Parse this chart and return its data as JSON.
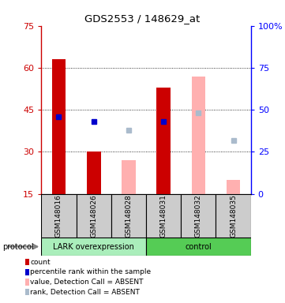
{
  "title": "GDS2553 / 148629_at",
  "samples": [
    "GSM148016",
    "GSM148026",
    "GSM148028",
    "GSM148031",
    "GSM148032",
    "GSM148035"
  ],
  "bar_data": [
    {
      "x": 0,
      "count": 63,
      "rank": 46,
      "absent_val": null,
      "absent_rank": null,
      "type": "present"
    },
    {
      "x": 1,
      "count": 30,
      "rank": 43,
      "absent_val": null,
      "absent_rank": null,
      "type": "present"
    },
    {
      "x": 2,
      "count": null,
      "rank": null,
      "absent_val": 27,
      "absent_rank": 38,
      "type": "absent"
    },
    {
      "x": 3,
      "count": 53,
      "rank": 43,
      "absent_val": null,
      "absent_rank": null,
      "type": "present"
    },
    {
      "x": 4,
      "count": null,
      "rank": null,
      "absent_val": 57,
      "absent_rank": 48,
      "type": "absent"
    },
    {
      "x": 5,
      "count": null,
      "rank": null,
      "absent_val": 20,
      "absent_rank": 32,
      "type": "absent"
    }
  ],
  "ylim_left": [
    15,
    75
  ],
  "ylim_right": [
    0,
    100
  ],
  "yticks_left": [
    15,
    30,
    45,
    60,
    75
  ],
  "yticks_right": [
    0,
    25,
    50,
    75,
    100
  ],
  "ytick_right_labels": [
    "0",
    "25",
    "50",
    "75",
    "100%"
  ],
  "bar_width": 0.4,
  "red_color": "#CC0000",
  "pink_color": "#FFB0B0",
  "blue_color": "#0000CC",
  "lightblue_color": "#AABBCC",
  "lark_color": "#AAEEBB",
  "control_color": "#55CC55",
  "legend_items": [
    {
      "label": "count",
      "color": "#CC0000"
    },
    {
      "label": "percentile rank within the sample",
      "color": "#0000CC"
    },
    {
      "label": "value, Detection Call = ABSENT",
      "color": "#FFB0B0"
    },
    {
      "label": "rank, Detection Call = ABSENT",
      "color": "#AABBCC"
    }
  ]
}
